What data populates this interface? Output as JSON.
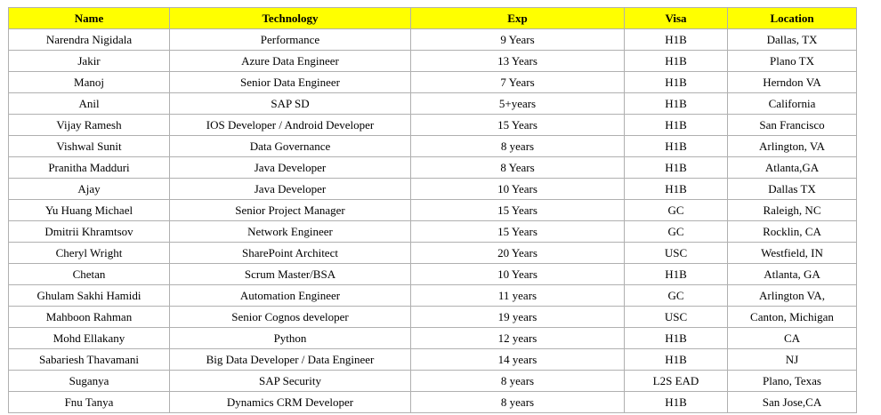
{
  "table": {
    "header": [
      "Name",
      "Technology",
      "Exp",
      "Visa",
      "Location"
    ],
    "rows": [
      [
        "Narendra Nigidala",
        "Performance",
        "9 Years",
        "H1B",
        "Dallas, TX"
      ],
      [
        "Jakir",
        "Azure Data Engineer",
        "13 Years",
        "H1B",
        "Plano TX"
      ],
      [
        "Manoj",
        "Senior Data Engineer",
        "7 Years",
        "H1B",
        "Herndon VA"
      ],
      [
        "Anil",
        "SAP SD",
        "5+years",
        "H1B",
        "California"
      ],
      [
        "Vijay Ramesh",
        "IOS Developer / Android Developer",
        "15 Years",
        "H1B",
        "San Francisco"
      ],
      [
        "Vishwal Sunit",
        "Data Governance",
        "8 years",
        "H1B",
        "Arlington, VA"
      ],
      [
        "Pranitha Madduri",
        "Java Developer",
        "8 Years",
        "H1B",
        "Atlanta,GA"
      ],
      [
        "Ajay",
        "Java Developer",
        "10 Years",
        "H1B",
        "Dallas TX"
      ],
      [
        "Yu Huang Michael",
        "Senior Project Manager",
        "15 Years",
        "GC",
        "Raleigh, NC"
      ],
      [
        "Dmitrii Khramtsov",
        "Network Engineer",
        "15 Years",
        "GC",
        "Rocklin, CA"
      ],
      [
        "Cheryl Wright",
        "SharePoint Architect",
        "20 Years",
        "USC",
        "Westfield, IN"
      ],
      [
        "Chetan",
        "Scrum Master/BSA",
        "10 Years",
        "H1B",
        "Atlanta, GA"
      ],
      [
        "Ghulam Sakhi Hamidi",
        "Automation Engineer",
        "11 years",
        "GC",
        "Arlington VA,"
      ],
      [
        "Mahboon Rahman",
        "Senior Cognos developer",
        "19 years",
        "USC",
        "Canton, Michigan"
      ],
      [
        "Mohd Ellakany",
        "Python",
        "12 years",
        "H1B",
        "CA"
      ],
      [
        "Sabariesh Thavamani",
        "Big Data Developer / Data Engineer",
        "14 years",
        "H1B",
        "NJ"
      ],
      [
        "Suganya",
        "SAP Security",
        "8 years",
        "L2S EAD",
        "Plano, Texas"
      ],
      [
        "Fnu Tanya",
        "Dynamics CRM Developer",
        "8 years",
        "H1B",
        "San Jose,CA"
      ]
    ]
  }
}
